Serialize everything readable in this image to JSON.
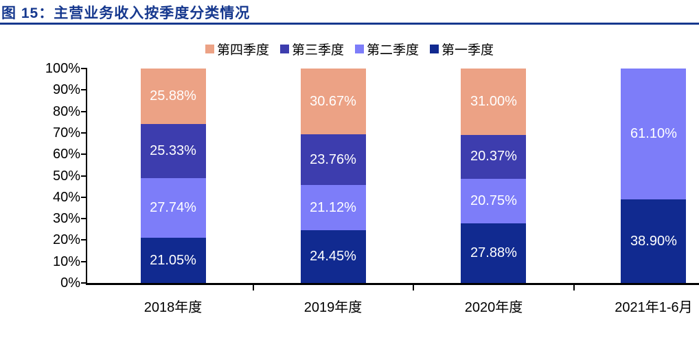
{
  "figure": {
    "title": "图 15：主营业务收入按季度分类情况",
    "title_color": "#16388e"
  },
  "chart_data": {
    "type": "bar",
    "stacked": true,
    "orientation": "vertical",
    "title": "图 15：主营业务收入按季度分类情况",
    "categories": [
      "2018年度",
      "2019年度",
      "2020年度",
      "2021年1-6月"
    ],
    "series": [
      {
        "name": "第一季度",
        "color": "#112a90",
        "values": [
          21.05,
          24.45,
          27.88,
          38.9
        ]
      },
      {
        "name": "第二季度",
        "color": "#7d7df9",
        "values": [
          27.74,
          21.12,
          20.75,
          61.1
        ]
      },
      {
        "name": "第三季度",
        "color": "#3d3dae",
        "values": [
          25.33,
          23.76,
          20.37,
          0
        ]
      },
      {
        "name": "第四季度",
        "color": "#eca285",
        "values": [
          25.88,
          30.67,
          31.0,
          0
        ]
      }
    ],
    "legend": [
      "第四季度",
      "第三季度",
      "第二季度",
      "第一季度"
    ],
    "legend_position": "top-center",
    "ylim": [
      0,
      100
    ],
    "ytick_step": 10,
    "ytick_suffix": "%",
    "data_label_format": "0.00%",
    "grid": false,
    "axis_color": "#000000",
    "label_text_color": "#ffffff"
  }
}
